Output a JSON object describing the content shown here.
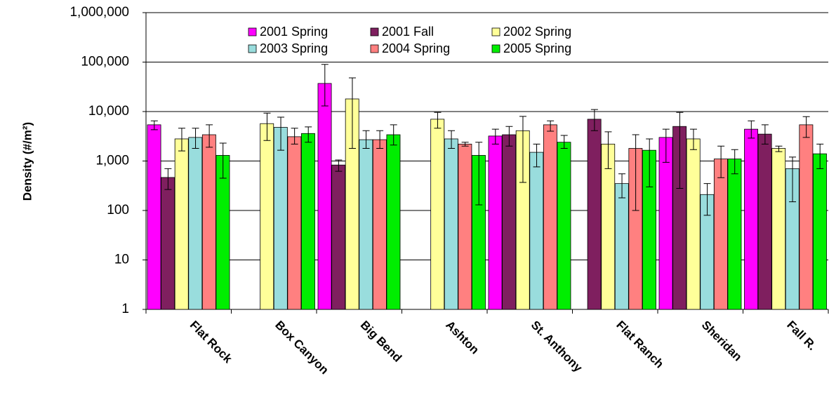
{
  "chart_data": {
    "type": "bar",
    "y_label": "Density (#/m²)",
    "log_scale": true,
    "grid": true,
    "legend": "top",
    "categories": [
      "Flat Rock",
      "Box Canyon",
      "Big Bend",
      "Ashton",
      "St. Anthony",
      "Flat Ranch",
      "Sheridan",
      "Fall R."
    ],
    "ylim": [
      1,
      1000000
    ],
    "yticks": [
      1,
      10,
      100,
      {
        "value": 1000,
        "label": "1,000"
      },
      {
        "value": 10000,
        "label": "10,000"
      },
      {
        "value": 100000,
        "label": "100,000"
      },
      {
        "value": 1000000,
        "label": "1,000,000"
      }
    ],
    "series": [
      {
        "name": "2001 Spring",
        "color": "#ff00ff",
        "values": [
          5400,
          null,
          37000,
          null,
          3200,
          null,
          3000,
          4400
        ],
        "lower": [
          4300,
          null,
          13000,
          null,
          2200,
          null,
          940,
          2900
        ],
        "upper": [
          6500,
          null,
          90000,
          null,
          4400,
          null,
          4400,
          6500
        ]
      },
      {
        "name": "2001 Fall",
        "color": "#7f1f5f",
        "values": [
          465,
          null,
          830,
          null,
          3400,
          7000,
          5000,
          3500
        ],
        "lower": [
          265,
          null,
          620,
          null,
          2000,
          4100,
          280,
          2200
        ],
        "upper": [
          700,
          null,
          1050,
          null,
          5000,
          11000,
          9600,
          5400
        ]
      },
      {
        "name": "2002 Spring",
        "color": "#ffff99",
        "values": [
          2800,
          5700,
          18000,
          7000,
          4100,
          2200,
          2800,
          1800
        ],
        "lower": [
          1600,
          2600,
          1800,
          4600,
          370,
          700,
          1700,
          1550
        ],
        "upper": [
          4600,
          9300,
          48000,
          9600,
          8000,
          3900,
          4400,
          2000
        ]
      },
      {
        "name": "2003 Spring",
        "color": "#99dddd",
        "values": [
          3000,
          4800,
          2700,
          2800,
          1500,
          350,
          210,
          700
        ],
        "lower": [
          1800,
          1650,
          1800,
          1800,
          760,
          180,
          80,
          150
        ],
        "upper": [
          4600,
          7700,
          4100,
          4100,
          2200,
          550,
          350,
          1200
        ]
      },
      {
        "name": "2004 Spring",
        "color": "#ff8080",
        "values": [
          3400,
          3100,
          2700,
          2200,
          5400,
          1800,
          1100,
          5400
        ],
        "lower": [
          1900,
          2200,
          1800,
          2000,
          4000,
          100,
          460,
          3000
        ],
        "upper": [
          5400,
          4600,
          4100,
          2400,
          6500,
          3400,
          2000,
          7900
        ]
      },
      {
        "name": "2005 Spring",
        "color": "#00ee00",
        "values": [
          1300,
          3600,
          3400,
          1300,
          2400,
          1650,
          1100,
          1400
        ],
        "lower": [
          450,
          2400,
          2100,
          130,
          1800,
          300,
          550,
          700
        ],
        "upper": [
          2300,
          4900,
          5400,
          2400,
          3300,
          2800,
          1700,
          2200
        ]
      }
    ]
  }
}
